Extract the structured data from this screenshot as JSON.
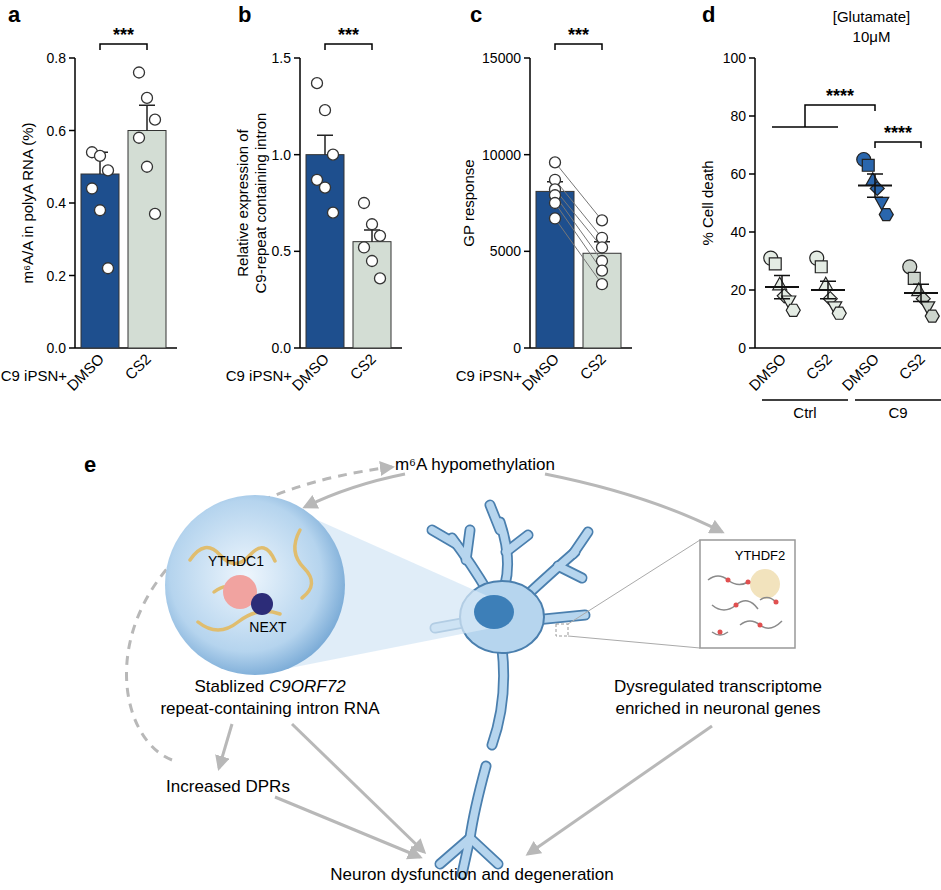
{
  "panel_labels": [
    "a",
    "b",
    "c",
    "d",
    "e"
  ],
  "chart_data": [
    {
      "type": "bar",
      "x_label": "C9 iPSN+",
      "y_label": [
        "m⁶A/A in polyA RNA (%)"
      ],
      "categories": [
        "DMSO",
        "CS2"
      ],
      "values": [
        0.48,
        0.6
      ],
      "errors": [
        0.06,
        0.07
      ],
      "points": [
        [
          0.54,
          0.53,
          0.49,
          0.44,
          0.38,
          0.22
        ],
        [
          0.76,
          0.69,
          0.63,
          0.58,
          0.5,
          0.37
        ]
      ],
      "colors": [
        "#1e4f8e",
        "#d3ddd4"
      ],
      "ylim": [
        0,
        0.8
      ],
      "yticks": [
        {
          "value": 0,
          "label": "0.0"
        },
        0.2,
        0.4,
        0.6,
        0.8
      ],
      "annotations": [
        {
          "text": "***",
          "from": 0,
          "to": 1
        }
      ]
    },
    {
      "type": "bar",
      "x_label": "C9 iPSN+",
      "y_label": [
        "Relative expression of",
        "C9-repeat containing intron"
      ],
      "categories": [
        "DMSO",
        "CS2"
      ],
      "values": [
        1.0,
        0.55
      ],
      "errors": [
        0.1,
        0.06
      ],
      "points": [
        [
          1.37,
          1.23,
          1.0,
          0.87,
          0.83,
          0.7
        ],
        [
          0.75,
          0.64,
          0.58,
          0.52,
          0.45,
          0.36
        ]
      ],
      "colors": [
        "#1e4f8e",
        "#d3ddd4"
      ],
      "ylim": [
        0,
        1.5
      ],
      "yticks": [
        {
          "value": 0,
          "label": "0.0"
        },
        0.5,
        {
          "value": 1,
          "label": "1.0"
        },
        1.5
      ],
      "annotations": [
        {
          "text": "***",
          "from": 0,
          "to": 1
        }
      ]
    },
    {
      "type": "paired_bar",
      "x_label": "C9 iPSN+",
      "y_label": [
        "GP response"
      ],
      "categories": [
        "DMSO",
        "CS2"
      ],
      "values": [
        8100,
        4900
      ],
      "errors": [
        500,
        600
      ],
      "points": [
        [
          9600,
          8700,
          8200,
          7900,
          7500,
          6700
        ],
        [
          6600,
          5700,
          5200,
          4500,
          4000,
          3300
        ]
      ],
      "colors": [
        "#1e4f8e",
        "#d3ddd4"
      ],
      "ylim": [
        0,
        15000
      ],
      "yticks": [
        0,
        5000,
        10000,
        15000
      ],
      "annotations": [
        {
          "text": "***",
          "from": 0,
          "to": 1
        }
      ]
    },
    {
      "type": "dot",
      "title": "[Glutamate]",
      "subtitle": "10μM",
      "y_label": [
        "% Cell death"
      ],
      "categories": [
        "DMSO",
        "CS2",
        "DMSO",
        "CS2"
      ],
      "values": [
        21,
        20,
        56,
        19
      ],
      "errors": [
        4,
        3,
        4,
        3
      ],
      "points": [
        [
          31,
          29,
          22,
          18,
          16,
          13
        ],
        [
          31,
          28,
          22,
          17,
          14,
          12
        ],
        [
          65,
          63,
          58,
          55,
          50,
          46
        ],
        [
          28,
          24,
          20,
          17,
          14,
          11
        ]
      ],
      "colors": [
        "#e4ece4",
        "#e4ece4",
        "#2a66ad",
        "#cdd5cd"
      ],
      "ylim": [
        0,
        100
      ],
      "yticks": [
        0,
        20,
        40,
        60,
        80,
        100
      ],
      "groups": [
        {
          "label": "Ctrl",
          "from": 0,
          "to": 1
        },
        {
          "label": "C9",
          "from": 2,
          "to": 3
        }
      ],
      "annotations": [
        {
          "text": "****",
          "from": [
            0,
            1
          ],
          "to": 2
        },
        {
          "text": "****",
          "from": 2,
          "to": 3
        }
      ]
    }
  ],
  "diagram": {
    "top": "m⁶A hypomethylation",
    "nucleus_reader": "YTHDC1",
    "nucleus_complex": "NEXT",
    "left_text": {
      "prefix": "Stablized ",
      "gene": "C9ORF72",
      "line2": "repeat-containing intron RNA"
    },
    "cytoplasm_reader": "YTHDF2",
    "right_text": [
      "Dysregulated transcriptome",
      "enriched in neuronal genes"
    ],
    "dprs": "Increased DPRs",
    "outcome": "Neuron dysfunction and degeneration"
  }
}
